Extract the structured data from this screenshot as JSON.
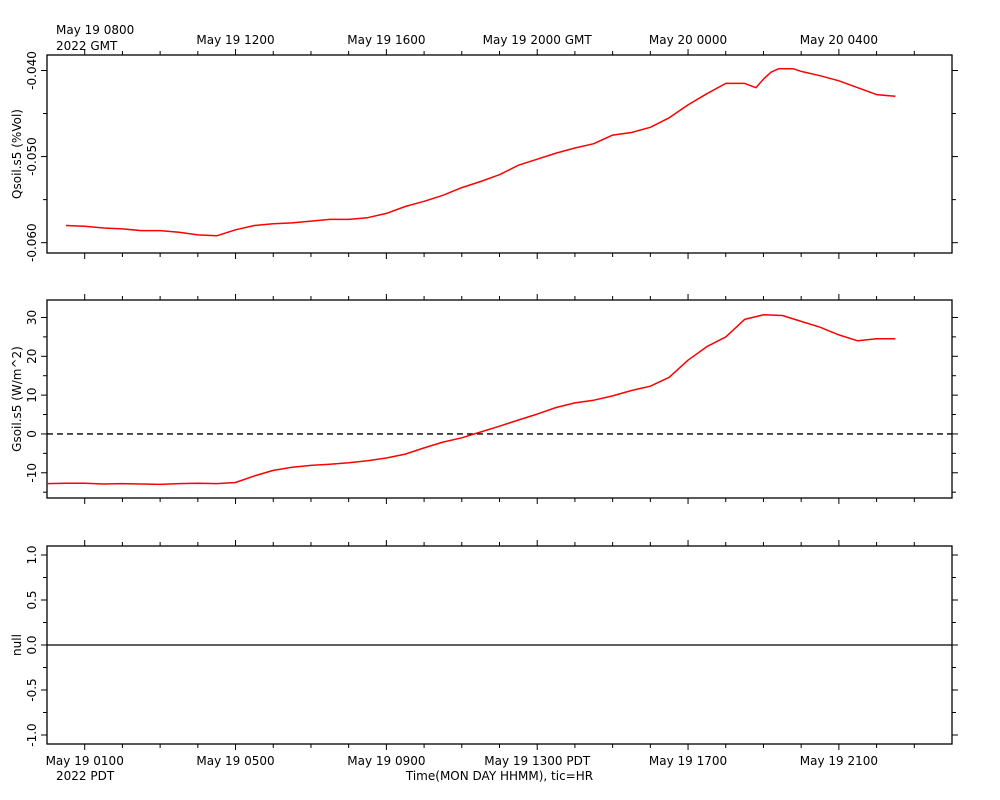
{
  "chart_data": [
    {
      "type": "line",
      "panel": "top",
      "ylabel": "Qsoil.s5 (%Vol)",
      "ylim": [
        -0.0612,
        -0.0382
      ],
      "yticks": [
        -0.06,
        -0.05,
        -0.04
      ],
      "ytick_labels": [
        "-0.060",
        "-0.050",
        "-0.040"
      ],
      "line_color": "#ff0000",
      "series": [
        {
          "x": [
            -0.5,
            0,
            0.5,
            1,
            1.5,
            2,
            2.5,
            3,
            3.5,
            4,
            4.5,
            5,
            5.5,
            6,
            6.5,
            7,
            7.5,
            8,
            8.5,
            9,
            9.5,
            10,
            10.5,
            11,
            11.5,
            12,
            12.5,
            13,
            13.5,
            14,
            14.5,
            15,
            15.5,
            16,
            16.5,
            17,
            17.5,
            17.8,
            18,
            18.2,
            18.4,
            18.6,
            18.8,
            19,
            19.5,
            20,
            20.5,
            21,
            21.5
          ],
          "values": [
            -0.058,
            -0.0581,
            -0.0583,
            -0.0584,
            -0.0586,
            -0.0586,
            -0.0588,
            -0.0591,
            -0.0592,
            -0.0585,
            -0.058,
            -0.0578,
            -0.0577,
            -0.0575,
            -0.0573,
            -0.0573,
            -0.0571,
            -0.0566,
            -0.0558,
            -0.0552,
            -0.0545,
            -0.0536,
            -0.0529,
            -0.0521,
            -0.051,
            -0.0503,
            -0.0496,
            -0.049,
            -0.0485,
            -0.0475,
            -0.0472,
            -0.0466,
            -0.0455,
            -0.044,
            -0.0427,
            -0.0415,
            -0.0415,
            -0.042,
            -0.041,
            -0.0402,
            -0.0398,
            -0.0398,
            -0.0398,
            -0.0401,
            -0.0406,
            -0.0412,
            -0.042,
            -0.0428,
            -0.043
          ]
        }
      ]
    },
    {
      "type": "line",
      "panel": "middle",
      "ylabel": "Gsoil.s5 (W/m^2)",
      "ylim": [
        -16.5,
        34.5
      ],
      "yticks": [
        -10,
        0,
        10,
        20,
        30
      ],
      "ytick_labels": [
        "-10",
        "0",
        "10",
        "20",
        "30"
      ],
      "zero_reference": "dashed",
      "line_color": "#ff0000",
      "series": [
        {
          "x": [
            -1,
            -0.5,
            0,
            0.5,
            1,
            1.5,
            2,
            2.5,
            3,
            3.5,
            4,
            4.5,
            5,
            5.5,
            6,
            6.5,
            7,
            7.5,
            8,
            8.5,
            9,
            9.5,
            10,
            10.5,
            11,
            11.5,
            12,
            12.5,
            13,
            13.5,
            14,
            14.5,
            15,
            15.5,
            16,
            16.5,
            17,
            17.5,
            18,
            18.5,
            19,
            19.5,
            20,
            20.5,
            21,
            21.5
          ],
          "values": [
            -12.8,
            -12.7,
            -12.7,
            -12.9,
            -12.8,
            -12.9,
            -13.0,
            -12.8,
            -12.7,
            -12.8,
            -12.5,
            -10.8,
            -9.4,
            -8.6,
            -8.1,
            -7.8,
            -7.4,
            -6.9,
            -6.2,
            -5.2,
            -3.6,
            -2.1,
            -1.0,
            0.5,
            2.0,
            3.6,
            5.1,
            6.8,
            8.0,
            8.7,
            9.8,
            11.2,
            12.3,
            14.6,
            19.0,
            22.5,
            25.0,
            29.5,
            30.7,
            30.5,
            29.0,
            27.5,
            25.5,
            24.0,
            24.5,
            24.5
          ]
        }
      ]
    },
    {
      "type": "line",
      "panel": "bottom",
      "ylabel": "null",
      "ylim": [
        -1.1,
        1.1
      ],
      "yticks": [
        -1.0,
        -0.5,
        0.0,
        0.5,
        1.0
      ],
      "ytick_labels": [
        "-1.0",
        "-0.5",
        "0.0",
        "0.5",
        "1.0"
      ],
      "zero_reference": "solid",
      "series": []
    }
  ],
  "x_axis": {
    "xlim": [
      -1,
      23
    ],
    "top_ticks": [
      "May 19 1200",
      "May 19 1600",
      "May 19 2000 GMT",
      "May 20 0000",
      "May 20 0400"
    ],
    "top_start_line1": "May 19 0800",
    "top_start_line2": "2022 GMT",
    "bottom_ticks": [
      "May 19 0100",
      "May 19 0500",
      "May 19 0900",
      "May 19 1300 PDT",
      "May 19 1700",
      "May 19 2100"
    ],
    "bottom_start_line2": "2022 PDT",
    "xlabel": "Time(MON DAY HHMM), tic=HR"
  }
}
